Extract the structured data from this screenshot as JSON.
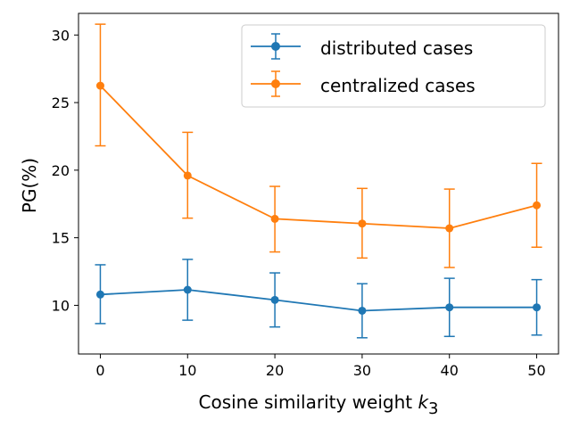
{
  "chart_data": {
    "type": "line",
    "xlabel": "Cosine similarity weight",
    "xlabel_italic_symbol": "k",
    "xlabel_subscript": "3",
    "ylabel": "PG(%)",
    "xlim": [
      -2.5,
      52.5
    ],
    "ylim": [
      6.4,
      31.6
    ],
    "xticks": [
      0,
      10,
      20,
      30,
      40,
      50
    ],
    "yticks": [
      10,
      15,
      20,
      25,
      30
    ],
    "grid": false,
    "legend_position": "top-right",
    "x": [
      0,
      10,
      20,
      30,
      40,
      50
    ],
    "series": [
      {
        "name": "distributed cases",
        "color": "#1f77b4",
        "values": [
          10.8,
          11.15,
          10.4,
          9.6,
          9.85,
          9.85
        ],
        "error_low": [
          8.65,
          8.9,
          8.4,
          7.6,
          7.7,
          7.8
        ],
        "error_high": [
          13.0,
          13.4,
          12.4,
          11.6,
          12.0,
          11.9
        ]
      },
      {
        "name": "centralized cases",
        "color": "#ff7f0e",
        "values": [
          26.25,
          19.6,
          16.4,
          16.05,
          15.7,
          17.4
        ],
        "error_low": [
          21.8,
          16.45,
          13.95,
          13.5,
          12.8,
          14.3
        ],
        "error_high": [
          30.8,
          22.8,
          18.8,
          18.65,
          18.6,
          20.5
        ]
      }
    ]
  }
}
